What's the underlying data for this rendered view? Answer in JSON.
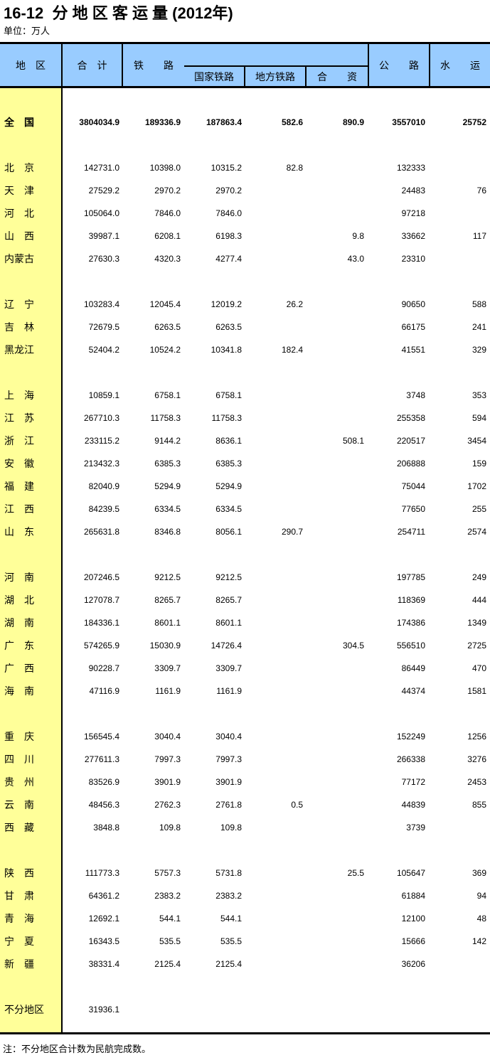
{
  "page": {
    "title": "16-12  分 地 区 客 运 量 (2012年)",
    "unit": "单位：万人",
    "note": "注：不分地区合计数为民航完成数。"
  },
  "colors": {
    "header_bg": "#99CCFF",
    "region_bg": "#FFFF99",
    "border": "#000000"
  },
  "table": {
    "columns": {
      "region": "地　区",
      "total": "合　计",
      "rail": "铁　　路",
      "rail_national": "国家铁路",
      "rail_local": "地方铁路",
      "rail_joint": "合　　资",
      "road": "公　　路",
      "water": "水　　运"
    },
    "groups": [
      [
        {
          "region": "全　国",
          "bold": true,
          "values": [
            "3804034.9",
            "189336.9",
            "187863.4",
            "582.6",
            "890.9",
            "3557010",
            "25752"
          ]
        }
      ],
      [
        {
          "region": "北　京",
          "values": [
            "142731.0",
            "10398.0",
            "10315.2",
            "82.8",
            "",
            "132333",
            ""
          ]
        },
        {
          "region": "天　津",
          "values": [
            "27529.2",
            "2970.2",
            "2970.2",
            "",
            "",
            "24483",
            "76"
          ]
        },
        {
          "region": "河　北",
          "values": [
            "105064.0",
            "7846.0",
            "7846.0",
            "",
            "",
            "97218",
            ""
          ]
        },
        {
          "region": "山　西",
          "values": [
            "39987.1",
            "6208.1",
            "6198.3",
            "",
            "9.8",
            "33662",
            "117"
          ]
        },
        {
          "region": "内蒙古",
          "values": [
            "27630.3",
            "4320.3",
            "4277.4",
            "",
            "43.0",
            "23310",
            ""
          ]
        }
      ],
      [
        {
          "region": "辽　宁",
          "values": [
            "103283.4",
            "12045.4",
            "12019.2",
            "26.2",
            "",
            "90650",
            "588"
          ]
        },
        {
          "region": "吉　林",
          "values": [
            "72679.5",
            "6263.5",
            "6263.5",
            "",
            "",
            "66175",
            "241"
          ]
        },
        {
          "region": "黑龙江",
          "values": [
            "52404.2",
            "10524.2",
            "10341.8",
            "182.4",
            "",
            "41551",
            "329"
          ]
        }
      ],
      [
        {
          "region": "上　海",
          "values": [
            "10859.1",
            "6758.1",
            "6758.1",
            "",
            "",
            "3748",
            "353"
          ]
        },
        {
          "region": "江　苏",
          "values": [
            "267710.3",
            "11758.3",
            "11758.3",
            "",
            "",
            "255358",
            "594"
          ]
        },
        {
          "region": "浙　江",
          "values": [
            "233115.2",
            "9144.2",
            "8636.1",
            "",
            "508.1",
            "220517",
            "3454"
          ]
        },
        {
          "region": "安　徽",
          "values": [
            "213432.3",
            "6385.3",
            "6385.3",
            "",
            "",
            "206888",
            "159"
          ]
        },
        {
          "region": "福　建",
          "values": [
            "82040.9",
            "5294.9",
            "5294.9",
            "",
            "",
            "75044",
            "1702"
          ]
        },
        {
          "region": "江　西",
          "values": [
            "84239.5",
            "6334.5",
            "6334.5",
            "",
            "",
            "77650",
            "255"
          ]
        },
        {
          "region": "山　东",
          "values": [
            "265631.8",
            "8346.8",
            "8056.1",
            "290.7",
            "",
            "254711",
            "2574"
          ]
        }
      ],
      [
        {
          "region": "河　南",
          "values": [
            "207246.5",
            "9212.5",
            "9212.5",
            "",
            "",
            "197785",
            "249"
          ]
        },
        {
          "region": "湖　北",
          "values": [
            "127078.7",
            "8265.7",
            "8265.7",
            "",
            "",
            "118369",
            "444"
          ]
        },
        {
          "region": "湖　南",
          "values": [
            "184336.1",
            "8601.1",
            "8601.1",
            "",
            "",
            "174386",
            "1349"
          ]
        },
        {
          "region": "广　东",
          "values": [
            "574265.9",
            "15030.9",
            "14726.4",
            "",
            "304.5",
            "556510",
            "2725"
          ]
        },
        {
          "region": "广　西",
          "values": [
            "90228.7",
            "3309.7",
            "3309.7",
            "",
            "",
            "86449",
            "470"
          ]
        },
        {
          "region": "海　南",
          "values": [
            "47116.9",
            "1161.9",
            "1161.9",
            "",
            "",
            "44374",
            "1581"
          ]
        }
      ],
      [
        {
          "region": "重　庆",
          "values": [
            "156545.4",
            "3040.4",
            "3040.4",
            "",
            "",
            "152249",
            "1256"
          ]
        },
        {
          "region": "四　川",
          "values": [
            "277611.3",
            "7997.3",
            "7997.3",
            "",
            "",
            "266338",
            "3276"
          ]
        },
        {
          "region": "贵　州",
          "values": [
            "83526.9",
            "3901.9",
            "3901.9",
            "",
            "",
            "77172",
            "2453"
          ]
        },
        {
          "region": "云　南",
          "values": [
            "48456.3",
            "2762.3",
            "2761.8",
            "0.5",
            "",
            "44839",
            "855"
          ]
        },
        {
          "region": "西　藏",
          "values": [
            "3848.8",
            "109.8",
            "109.8",
            "",
            "",
            "3739",
            ""
          ]
        }
      ],
      [
        {
          "region": "陕　西",
          "values": [
            "111773.3",
            "5757.3",
            "5731.8",
            "",
            "25.5",
            "105647",
            "369"
          ]
        },
        {
          "region": "甘　肃",
          "values": [
            "64361.2",
            "2383.2",
            "2383.2",
            "",
            "",
            "61884",
            "94"
          ]
        },
        {
          "region": "青　海",
          "values": [
            "12692.1",
            "544.1",
            "544.1",
            "",
            "",
            "12100",
            "48"
          ]
        },
        {
          "region": "宁　夏",
          "values": [
            "16343.5",
            "535.5",
            "535.5",
            "",
            "",
            "15666",
            "142"
          ]
        },
        {
          "region": "新　疆",
          "values": [
            "38331.4",
            "2125.4",
            "2125.4",
            "",
            "",
            "36206",
            ""
          ]
        }
      ],
      [
        {
          "region": "不分地区",
          "values": [
            "31936.1",
            "",
            "",
            "",
            "",
            "",
            ""
          ]
        }
      ]
    ]
  }
}
